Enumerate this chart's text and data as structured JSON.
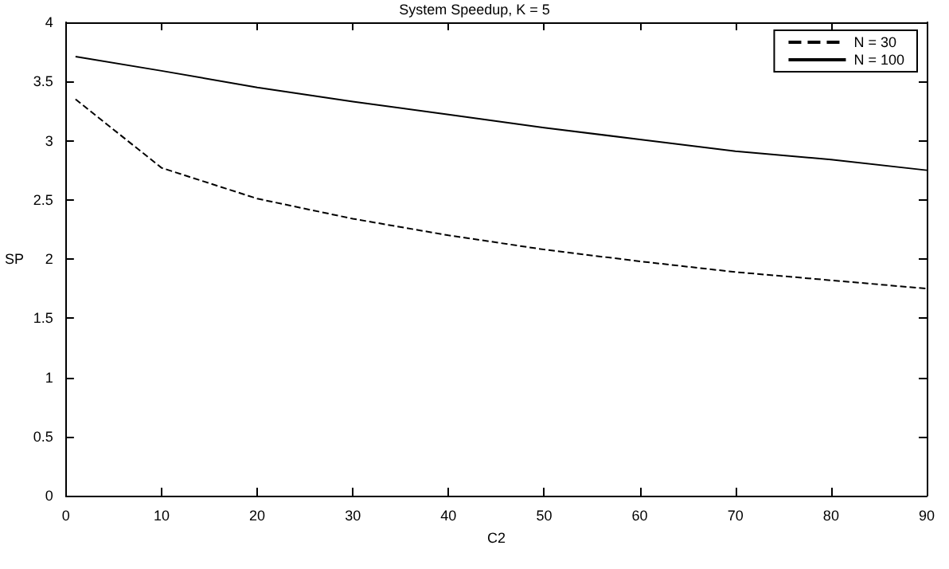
{
  "chart_data": {
    "type": "line",
    "title": "System Speedup, K = 5",
    "xlabel": "C2",
    "ylabel": "SP",
    "x": [
      1,
      10,
      20,
      30,
      40,
      50,
      60,
      70,
      80,
      90
    ],
    "series": [
      {
        "name": "N = 30",
        "color": "#000000",
        "line_style": "dashed",
        "values": [
          3.35,
          2.77,
          2.51,
          2.34,
          2.2,
          2.08,
          1.98,
          1.89,
          1.82,
          1.75
        ]
      },
      {
        "name": "N = 100",
        "color": "#000000",
        "line_style": "solid",
        "values": [
          3.71,
          3.59,
          3.45,
          3.33,
          3.22,
          3.11,
          3.01,
          2.91,
          2.84,
          2.75
        ]
      }
    ],
    "xlim": [
      0,
      90
    ],
    "xticks": [
      0,
      10,
      20,
      30,
      40,
      50,
      60,
      70,
      80,
      90
    ],
    "ylim": [
      0,
      4
    ],
    "yticks": [
      0,
      0.5,
      1,
      1.5,
      2,
      2.5,
      3,
      3.5,
      4
    ],
    "grid": false,
    "legend": "top right",
    "marker": "none"
  }
}
